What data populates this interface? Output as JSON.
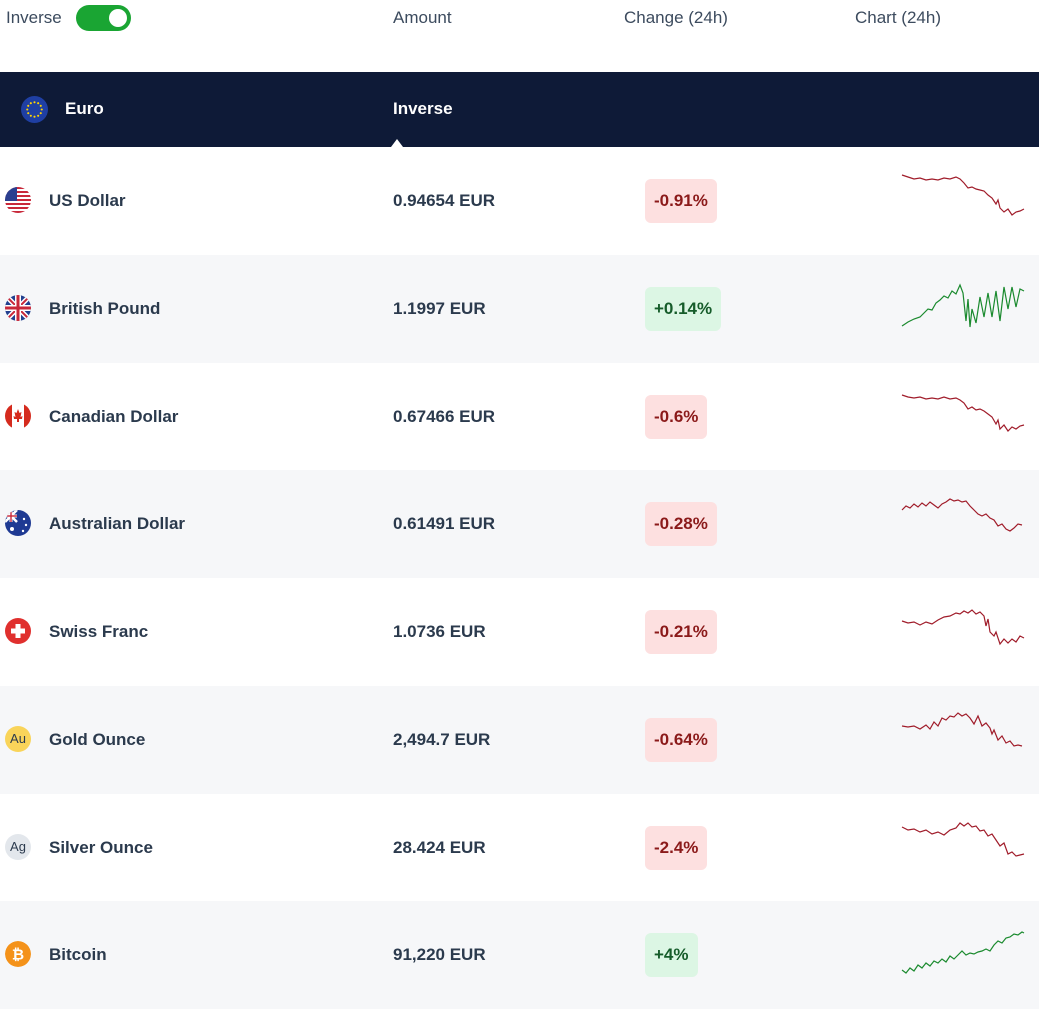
{
  "header": {
    "inverse_label": "Inverse",
    "inverse_on": true,
    "col_amount": "Amount",
    "col_change": "Change (24h)",
    "col_chart": "Chart (24h)"
  },
  "base": {
    "name": "Euro",
    "mode": "Inverse",
    "icon": "eu-flag-icon"
  },
  "colors": {
    "toggle": "#1aa533",
    "base_bar": "#0e1a37",
    "negative": "#8b1a1a",
    "positive": "#1a8a2e"
  },
  "rows": [
    {
      "name": "US Dollar",
      "amount": "0.94654 EUR",
      "change": "-0.91%",
      "dir": "neg",
      "icon": "us-flag-icon"
    },
    {
      "name": "British Pound",
      "amount": "1.1997 EUR",
      "change": "+0.14%",
      "dir": "pos",
      "icon": "uk-flag-icon"
    },
    {
      "name": "Canadian Dollar",
      "amount": "0.67466 EUR",
      "change": "-0.6%",
      "dir": "neg",
      "icon": "canada-flag-icon"
    },
    {
      "name": "Australian Dollar",
      "amount": "0.61491 EUR",
      "change": "-0.28%",
      "dir": "neg",
      "icon": "australia-flag-icon"
    },
    {
      "name": "Swiss Franc",
      "amount": "1.0736 EUR",
      "change": "-0.21%",
      "dir": "neg",
      "icon": "swiss-flag-icon"
    },
    {
      "name": "Gold Ounce",
      "amount": "2,494.7 EUR",
      "change": "-0.64%",
      "dir": "neg",
      "icon": "gold-icon",
      "icon_text": "Au"
    },
    {
      "name": "Silver Ounce",
      "amount": "28.424 EUR",
      "change": "-2.4%",
      "dir": "neg",
      "icon": "silver-icon",
      "icon_text": "Ag"
    },
    {
      "name": "Bitcoin",
      "amount": "91,220 EUR",
      "change": "+4%",
      "dir": "pos",
      "icon": "bitcoin-icon"
    }
  ]
}
